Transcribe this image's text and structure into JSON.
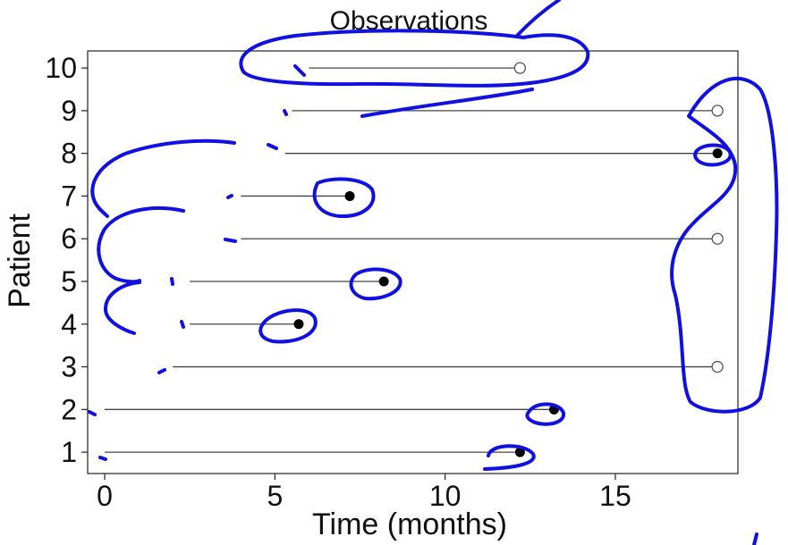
{
  "chart_data": {
    "type": "scatter",
    "title": "Observations",
    "xlabel": "Time (months)",
    "ylabel": "Patient",
    "xlim": [
      -0.5,
      18.6
    ],
    "ylim": [
      0.5,
      10.4
    ],
    "xticks": [
      0,
      5,
      10,
      15
    ],
    "yticks": [
      1,
      2,
      3,
      4,
      5,
      6,
      7,
      8,
      9,
      10
    ],
    "grid": false,
    "legend": "none",
    "patients": [
      {
        "patient": 1,
        "start": 0.0,
        "end": 12.2,
        "event": true
      },
      {
        "patient": 2,
        "start": 0.0,
        "end": 13.2,
        "event": true
      },
      {
        "patient": 3,
        "start": 2.0,
        "end": 18.0,
        "event": false
      },
      {
        "patient": 4,
        "start": 2.5,
        "end": 5.7,
        "event": true
      },
      {
        "patient": 5,
        "start": 2.5,
        "end": 8.2,
        "event": true
      },
      {
        "patient": 6,
        "start": 4.0,
        "end": 18.0,
        "event": false
      },
      {
        "patient": 7,
        "start": 4.0,
        "end": 7.2,
        "event": true
      },
      {
        "patient": 8,
        "start": 5.3,
        "end": 18.0,
        "event": true
      },
      {
        "patient": 9,
        "start": 5.5,
        "end": 18.0,
        "event": false
      },
      {
        "patient": 10,
        "start": 6.0,
        "end": 12.2,
        "event": false
      }
    ],
    "colors": {
      "line": "#444444",
      "event": "#000000",
      "censored_stroke": "#555555",
      "annotation": "#1010e0"
    }
  }
}
